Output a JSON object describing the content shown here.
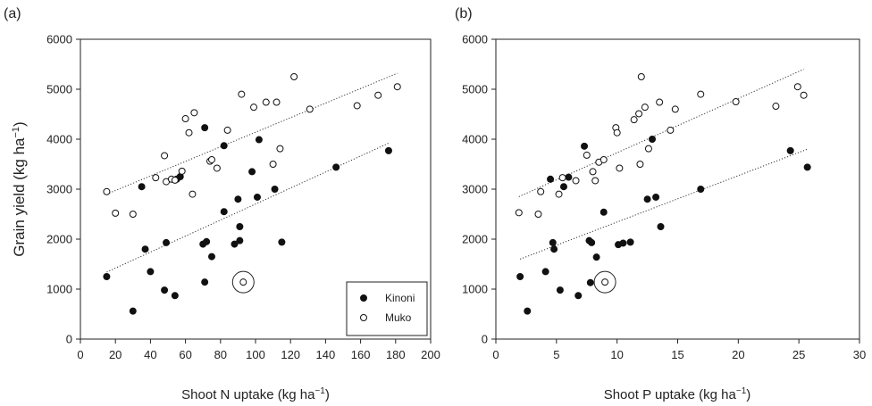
{
  "chart_data": [
    {
      "type": "scatter",
      "panel_label": "(a)",
      "xlabel": "Shoot N uptake (kg ha",
      "xlabel_sup": "−1",
      "xlabel_end": ")",
      "ylabel": "Grain yield (kg ha",
      "ylabel_sup": "−1",
      "ylabel_end": ")",
      "xlim": [
        0,
        200
      ],
      "ylim": [
        0,
        6000
      ],
      "xticks": [
        0,
        20,
        40,
        60,
        80,
        100,
        120,
        140,
        160,
        180,
        200
      ],
      "yticks": [
        0,
        1000,
        2000,
        3000,
        4000,
        5000,
        6000
      ],
      "grid": false,
      "legend_position": "bottom-right",
      "series": [
        {
          "name": "Kinoni",
          "marker": "filled-circle",
          "points": [
            [
              15,
              1250
            ],
            [
              30,
              560
            ],
            [
              35,
              3050
            ],
            [
              37,
              1800
            ],
            [
              40,
              1350
            ],
            [
              48,
              980
            ],
            [
              49,
              1930
            ],
            [
              54,
              870
            ],
            [
              55,
              3200
            ],
            [
              57,
              3250
            ],
            [
              70,
              1900
            ],
            [
              71,
              4230
            ],
            [
              71,
              1140
            ],
            [
              72,
              1950
            ],
            [
              75,
              1650
            ],
            [
              82,
              2550
            ],
            [
              82,
              3870
            ],
            [
              88,
              1900
            ],
            [
              90,
              2800
            ],
            [
              91,
              1970
            ],
            [
              91,
              2250
            ],
            [
              98,
              3350
            ],
            [
              101,
              2840
            ],
            [
              102,
              3990
            ],
            [
              111,
              3000
            ],
            [
              115,
              1940
            ],
            [
              146,
              3440
            ],
            [
              176,
              3770
            ]
          ],
          "trend": [
            [
              15,
              1340
            ],
            [
              176,
              3920
            ]
          ]
        },
        {
          "name": "Muko",
          "marker": "open-circle",
          "points": [
            [
              15,
              2950
            ],
            [
              20,
              2520
            ],
            [
              30,
              2500
            ],
            [
              43,
              3230
            ],
            [
              48,
              3670
            ],
            [
              49,
              3150
            ],
            [
              52,
              3200
            ],
            [
              54,
              3180
            ],
            [
              58,
              3360
            ],
            [
              60,
              4410
            ],
            [
              62,
              4130
            ],
            [
              64,
              2900
            ],
            [
              65,
              4530
            ],
            [
              74,
              3560
            ],
            [
              75,
              3590
            ],
            [
              78,
              3420
            ],
            [
              84,
              4180
            ],
            [
              92,
              4900
            ],
            [
              93,
              1140
            ],
            [
              99,
              4640
            ],
            [
              106,
              4740
            ],
            [
              110,
              3500
            ],
            [
              112,
              4740
            ],
            [
              114,
              3810
            ],
            [
              131,
              4600
            ],
            [
              122,
              5250
            ],
            [
              158,
              4670
            ],
            [
              170,
              4880
            ],
            [
              181,
              5050
            ]
          ],
          "trend": [
            [
              15,
              2900
            ],
            [
              181,
              5320
            ]
          ]
        }
      ],
      "circled_point": [
        93,
        1140
      ]
    },
    {
      "type": "scatter",
      "panel_label": "(b)",
      "xlabel": "Shoot P uptake (kg ha",
      "xlabel_sup": "−1",
      "xlabel_end": ")",
      "xlim": [
        0,
        30
      ],
      "ylim": [
        0,
        6000
      ],
      "xticks": [
        0,
        5,
        10,
        15,
        20,
        25,
        30
      ],
      "yticks": [
        0,
        1000,
        2000,
        3000,
        4000,
        5000,
        6000
      ],
      "grid": false,
      "series": [
        {
          "name": "Kinoni",
          "marker": "filled-circle",
          "points": [
            [
              2.0,
              1250
            ],
            [
              2.6,
              560
            ],
            [
              4.1,
              1350
            ],
            [
              4.5,
              3200
            ],
            [
              4.7,
              1930
            ],
            [
              4.8,
              1800
            ],
            [
              5.3,
              980
            ],
            [
              5.6,
              3050
            ],
            [
              6.0,
              3240
            ],
            [
              6.8,
              870
            ],
            [
              7.3,
              3860
            ],
            [
              7.7,
              1970
            ],
            [
              7.8,
              1130
            ],
            [
              7.9,
              1930
            ],
            [
              8.3,
              1640
            ],
            [
              8.9,
              2540
            ],
            [
              10.1,
              1890
            ],
            [
              10.5,
              1920
            ],
            [
              11.1,
              1940
            ],
            [
              12.5,
              2800
            ],
            [
              12.9,
              4000
            ],
            [
              13.2,
              2840
            ],
            [
              13.6,
              2250
            ],
            [
              16.9,
              3000
            ],
            [
              24.3,
              3770
            ],
            [
              25.7,
              3440
            ]
          ],
          "trend": [
            [
              2.0,
              1600
            ],
            [
              25.7,
              3800
            ]
          ]
        },
        {
          "name": "Muko",
          "marker": "open-circle",
          "points": [
            [
              1.9,
              2530
            ],
            [
              3.5,
              2500
            ],
            [
              3.7,
              2950
            ],
            [
              5.2,
              2900
            ],
            [
              5.5,
              3230
            ],
            [
              6.6,
              3170
            ],
            [
              7.5,
              3680
            ],
            [
              8.0,
              3350
            ],
            [
              8.2,
              3170
            ],
            [
              8.5,
              3540
            ],
            [
              8.9,
              3590
            ],
            [
              9.0,
              1140
            ],
            [
              9.9,
              4230
            ],
            [
              10.0,
              4130
            ],
            [
              10.2,
              3420
            ],
            [
              11.4,
              4390
            ],
            [
              11.8,
              4510
            ],
            [
              11.9,
              3500
            ],
            [
              12.0,
              5250
            ],
            [
              12.3,
              4640
            ],
            [
              12.6,
              3810
            ],
            [
              13.5,
              4740
            ],
            [
              14.4,
              4180
            ],
            [
              14.8,
              4600
            ],
            [
              16.9,
              4900
            ],
            [
              19.8,
              4750
            ],
            [
              23.1,
              4660
            ],
            [
              24.9,
              5050
            ],
            [
              25.4,
              4880
            ]
          ],
          "trend": [
            [
              1.9,
              2850
            ],
            [
              25.4,
              5400
            ]
          ]
        }
      ],
      "circled_point": [
        9.0,
        1140
      ]
    }
  ],
  "legend": {
    "items": [
      {
        "label": "Kinoni",
        "marker": "filled-circle"
      },
      {
        "label": "Muko",
        "marker": "open-circle"
      }
    ]
  }
}
